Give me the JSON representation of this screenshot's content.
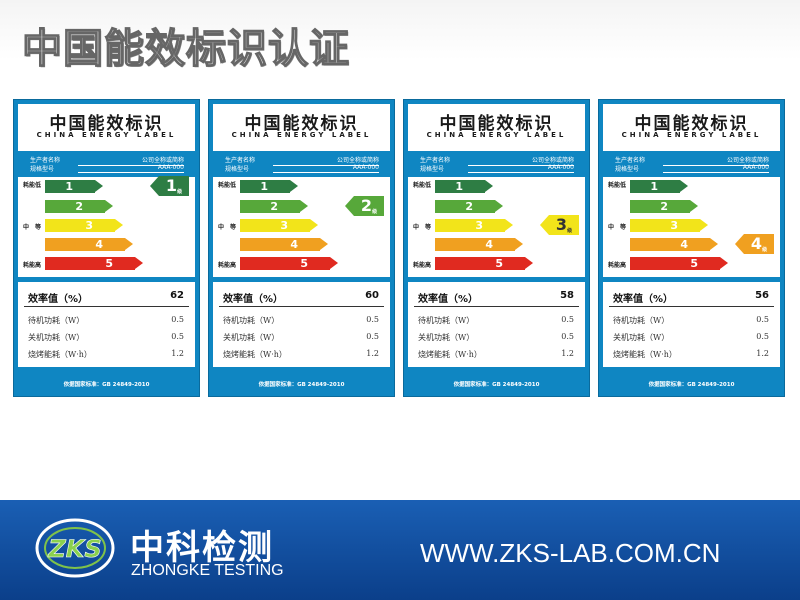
{
  "page": {
    "title": "中国能效标识认证"
  },
  "label_common": {
    "cn_title": "中国能效标识",
    "en_title": "CHINA ENERGY LABEL",
    "producer_key": "生产者名称",
    "producer_value": "公司全称或简称",
    "model_key": "规格型号",
    "model_value": "AAA-000",
    "scale_low": "耗能低",
    "scale_mid": "中　等",
    "scale_high": "耗能高",
    "bars": [
      "1",
      "2",
      "3",
      "4",
      "5"
    ],
    "grade_suffix": "级",
    "efficiency_key": "效率值（%）",
    "standby_key": "待机功耗（W）",
    "off_key": "关机功耗（W）",
    "bake_key": "烧烤能耗（W·h）",
    "standby_value": "0.5",
    "off_value": "0.5",
    "bake_value": "1.2",
    "standard": "依据国家标准：GB 24849-2010"
  },
  "colors": {
    "bar1": "#2e7d44",
    "bar2": "#57a83a",
    "bar3": "#f2e41a",
    "bar4": "#f0a020",
    "bar5": "#e02a20",
    "label_blue": "#0f86c2",
    "footer_blue": "#0b3f8a"
  },
  "labels": [
    {
      "grade": "1",
      "efficiency": "62"
    },
    {
      "grade": "2",
      "efficiency": "60"
    },
    {
      "grade": "3",
      "efficiency": "58"
    },
    {
      "grade": "4",
      "efficiency": "56"
    }
  ],
  "footer": {
    "logo_text": "ZKS",
    "brand_cn": "中科检测",
    "brand_en": "ZHONGKE TESTING",
    "website": "WWW.ZKS-LAB.COM.CN"
  }
}
